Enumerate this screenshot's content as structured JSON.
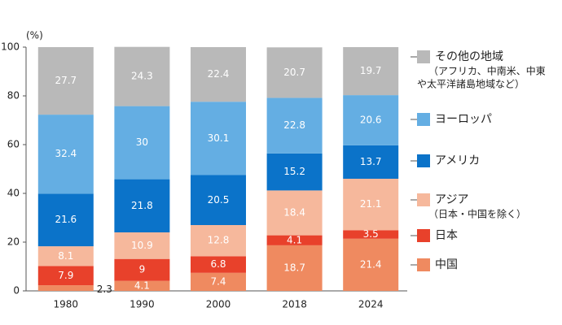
{
  "chart_data": {
    "type": "stacked_bar",
    "y_unit": "(%)",
    "categories": [
      "1980",
      "1990",
      "2000",
      "2018",
      "2024"
    ],
    "ylim": [
      0,
      100
    ],
    "yticks": [
      0,
      20,
      40,
      60,
      80,
      100
    ],
    "series": [
      {
        "name": "中国",
        "color": "#ef8a60",
        "values": [
          2.3,
          4.1,
          7.4,
          18.7,
          21.4
        ]
      },
      {
        "name": "日本",
        "color": "#e8412b",
        "values": [
          7.9,
          9.0,
          6.8,
          4.1,
          3.5
        ]
      },
      {
        "name": "アジア",
        "note": [
          "（日本・中国を除く）"
        ],
        "color": "#f6b89c",
        "values": [
          8.1,
          10.9,
          12.8,
          18.4,
          21.1
        ]
      },
      {
        "name": "アメリカ",
        "color": "#0b73c9",
        "values": [
          21.6,
          21.8,
          20.5,
          15.2,
          13.7
        ]
      },
      {
        "name": "ヨーロッパ",
        "color": "#64aee3",
        "values": [
          32.4,
          30.0,
          30.1,
          22.8,
          20.6
        ]
      },
      {
        "name": "その他の地域",
        "note": [
          "（アフリカ、中南米、中東",
          "や太平洋諸島地域など）"
        ],
        "color": "#b9b9b9",
        "values": [
          27.7,
          24.3,
          22.4,
          20.7,
          19.7
        ]
      }
    ]
  }
}
